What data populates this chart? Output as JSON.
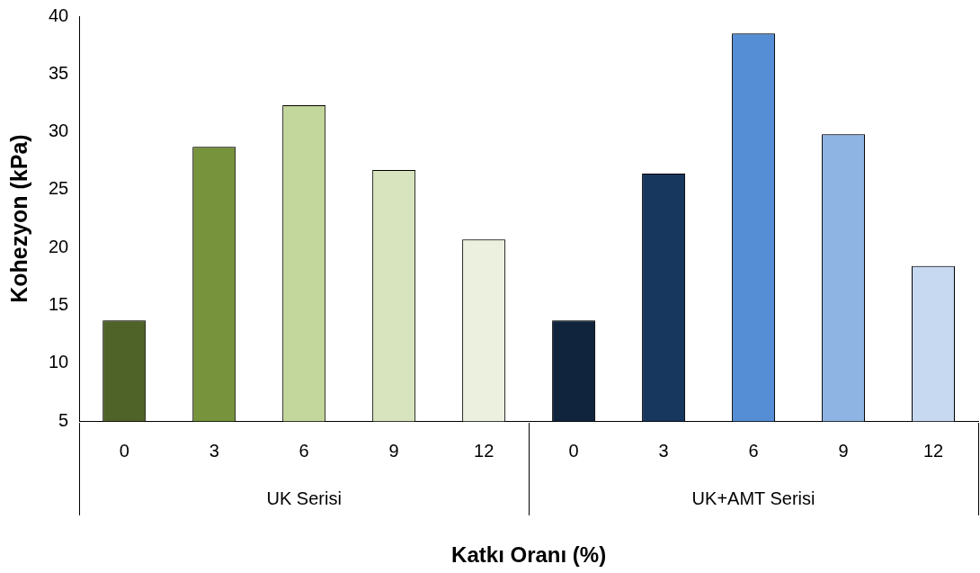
{
  "chart_data": {
    "type": "bar",
    "xlabel": "Katkı Oranı (%)",
    "ylabel": "Kohezyon (kPa)",
    "categories": [
      "0",
      "3",
      "6",
      "9",
      "12",
      "0",
      "3",
      "6",
      "9",
      "12"
    ],
    "values": [
      13.7,
      28.7,
      32.3,
      26.7,
      20.7,
      13.7,
      26.4,
      38.5,
      29.8,
      18.4
    ],
    "colors": [
      "#4f6228",
      "#77933c",
      "#c3d69b",
      "#d7e4bd",
      "#ebf1de",
      "#10243e",
      "#17375e",
      "#558ed5",
      "#8eb4e3",
      "#c6d9f1"
    ],
    "annotations": [
      "UK Serisi",
      "UK+AMT Serisi"
    ],
    "ylim": [
      5,
      40
    ],
    "yticks": [
      5,
      10,
      15,
      20,
      25,
      30,
      35,
      40
    ],
    "grid": false,
    "legend": false
  }
}
